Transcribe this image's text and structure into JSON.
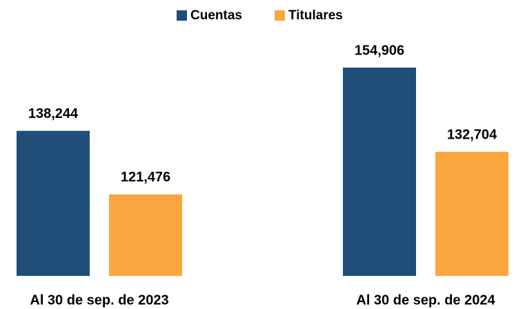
{
  "chart_data": {
    "type": "bar",
    "categories": [
      "Al 30 de sep. de 2023",
      "Al 30 de sep. de 2024"
    ],
    "series": [
      {
        "name": "Cuentas",
        "color": "#1f4e79",
        "values": [
          138244,
          154906
        ],
        "value_labels": [
          "138,244",
          "154,906"
        ]
      },
      {
        "name": "Titulares",
        "color": "#f9a73e",
        "values": [
          121476,
          132704
        ],
        "value_labels": [
          "121,476",
          "132,704"
        ]
      }
    ],
    "ylim": [
      100000,
      160000
    ],
    "legend": "top"
  }
}
